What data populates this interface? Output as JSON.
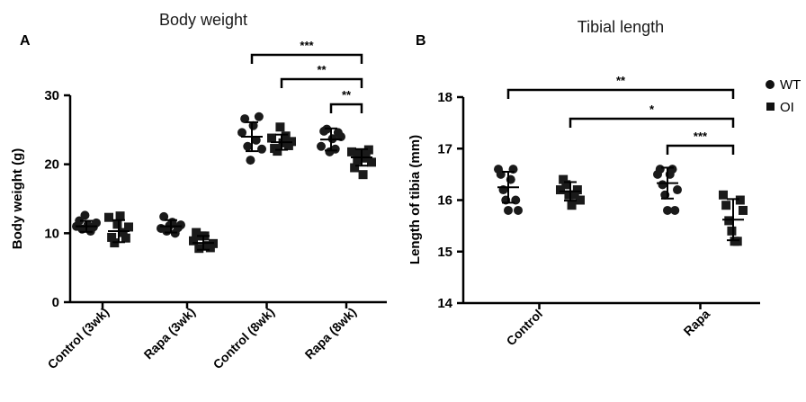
{
  "chart_data": [
    {
      "type": "scatter",
      "panel": "A",
      "title": "Body weight",
      "ylabel": "Body weight (g)",
      "ylim": [
        0,
        30
      ],
      "yticks": [
        0,
        10,
        20,
        30
      ],
      "categories": [
        "Control (3wk)",
        "Rapa (3wk)",
        "Control (8wk)",
        "Rapa (8wk)"
      ],
      "series": [
        {
          "name": "WT",
          "marker": "circle",
          "values": [
            [
              11.0,
              11.8,
              10.6,
              12.6,
              11.2,
              10.3,
              10.9,
              11.5
            ],
            [
              10.7,
              12.4,
              10.3,
              11.1,
              11.6,
              10.0,
              10.8,
              11.2
            ],
            [
              24.6,
              26.6,
              22.6,
              20.6,
              25.6,
              23.5,
              26.9,
              22.2
            ],
            [
              22.6,
              24.8,
              25.1,
              21.8,
              23.7,
              22.2,
              24.6,
              24.0
            ]
          ],
          "mean": [
            11.0,
            11.0,
            24.0,
            23.6
          ],
          "sd": [
            0.8,
            0.9,
            2.1,
            1.6
          ]
        },
        {
          "name": "OI",
          "marker": "square",
          "values": [
            [
              12.3,
              9.4,
              8.6,
              11.3,
              12.5,
              10.1,
              9.3,
              10.9
            ],
            [
              8.9,
              10.1,
              7.8,
              9.6,
              9.6,
              8.2,
              7.9,
              8.5
            ],
            [
              23.8,
              22.3,
              21.9,
              25.4,
              23.1,
              24.1,
              22.7,
              23.3
            ],
            [
              21.8,
              19.5,
              20.6,
              21.5,
              18.5,
              20.9,
              22.1,
              20.3
            ]
          ],
          "mean": [
            10.3,
            8.6,
            23.2,
            21.0
          ],
          "sd": [
            1.6,
            1.0,
            1.1,
            1.2
          ]
        }
      ],
      "significance": [
        {
          "from": "Control (8wk) WT",
          "to": "Rapa (8wk) OI",
          "label": "***"
        },
        {
          "from": "Control (8wk) OI",
          "to": "Rapa (8wk) OI",
          "label": "**"
        },
        {
          "from": "Rapa (8wk) WT",
          "to": "Rapa (8wk) OI",
          "label": "**"
        }
      ]
    },
    {
      "type": "scatter",
      "panel": "B",
      "title": "Tibial length",
      "ylabel": "Length of tibia (mm)",
      "ylim": [
        14,
        18
      ],
      "yticks": [
        14,
        15,
        16,
        17,
        18
      ],
      "categories": [
        "Control",
        "Rapa"
      ],
      "series": [
        {
          "name": "WT",
          "marker": "circle",
          "values": [
            [
              16.6,
              16.5,
              16.2,
              16.0,
              15.8,
              16.4,
              16.6,
              16.0,
              15.8
            ],
            [
              16.5,
              16.6,
              16.3,
              16.1,
              15.8,
              16.5,
              16.6,
              15.8,
              16.2
            ]
          ],
          "mean": [
            16.25,
            16.33
          ],
          "sd": [
            0.3,
            0.3
          ]
        },
        {
          "name": "OI",
          "marker": "square",
          "values": [
            [
              16.2,
              16.4,
              16.3,
              16.1,
              15.9,
              16.1,
              16.2,
              16.0
            ],
            [
              16.1,
              15.9,
              15.6,
              15.4,
              15.2,
              15.2,
              16.0,
              15.8
            ]
          ],
          "mean": [
            16.17,
            15.62
          ],
          "sd": [
            0.18,
            0.4
          ]
        }
      ],
      "significance": [
        {
          "from": "Control WT",
          "to": "Rapa OI",
          "label": "**"
        },
        {
          "from": "Control OI",
          "to": "Rapa OI",
          "label": "*"
        },
        {
          "from": "Rapa WT",
          "to": "Rapa OI",
          "label": "***"
        }
      ],
      "legend": {
        "placement": "top-right",
        "entries": [
          "WT",
          "OI"
        ]
      }
    }
  ]
}
